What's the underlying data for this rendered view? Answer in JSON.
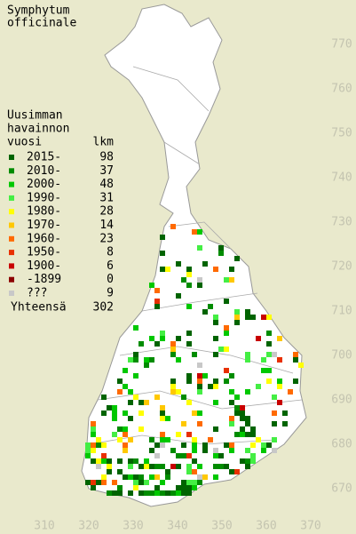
{
  "title": [
    "Symphytum",
    "officinale"
  ],
  "legend": {
    "header": [
      "Uusimman",
      "havainnon",
      "vuosi"
    ],
    "count_header": "lkm",
    "items": [
      {
        "label": "2015-",
        "count": 98,
        "color": "#006400"
      },
      {
        "label": "2010-",
        "count": 37,
        "color": "#008c00"
      },
      {
        "label": "2000-",
        "count": 48,
        "color": "#00c800"
      },
      {
        "label": "1990-",
        "count": 31,
        "color": "#44ee44"
      },
      {
        "label": "1980-",
        "count": 28,
        "color": "#ffff00"
      },
      {
        "label": "1970-",
        "count": 14,
        "color": "#ffc800"
      },
      {
        "label": "1960-",
        "count": 23,
        "color": "#ff6a00"
      },
      {
        "label": "1950-",
        "count": 8,
        "color": "#e83000"
      },
      {
        "label": "1900-",
        "count": 6,
        "color": "#c80000"
      },
      {
        "label": "-1899",
        "count": 0,
        "color": "#8c0000"
      },
      {
        "label": "???",
        "count": 9,
        "color": "#c8c8c8"
      }
    ],
    "total": {
      "label": "Yhteensä",
      "value": 302
    }
  },
  "x_labels": [
    310,
    320,
    330,
    340,
    350,
    360,
    370
  ],
  "y_labels": [
    670,
    680,
    690,
    700,
    710,
    720,
    730,
    740,
    750,
    760,
    770
  ]
}
